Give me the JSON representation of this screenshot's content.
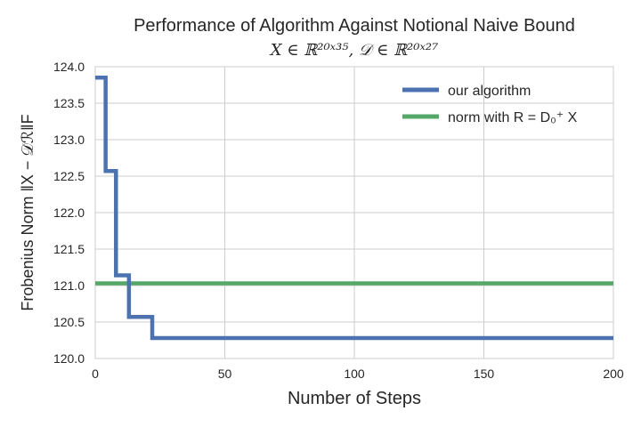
{
  "chart_data": {
    "type": "line",
    "title": "Performance of Algorithm Against Notional Naive Bound",
    "subtitle": "X ∈ ℝ²⁰ˣ³⁵,  𝒟 ∈ ℝ²⁰ˣ²⁷",
    "xlabel": "Number of Steps",
    "ylabel": "Frobenius Norm ‖X − 𝒟ℛ‖F",
    "xlim": [
      0,
      200
    ],
    "ylim": [
      120.0,
      124.0
    ],
    "x_ticks": [
      "0",
      "50",
      "100",
      "150",
      "200"
    ],
    "y_ticks": [
      "120.0",
      "120.5",
      "121.0",
      "121.5",
      "122.0",
      "122.5",
      "123.0",
      "123.5",
      "124.0"
    ],
    "grid": true,
    "legend_position": "top-right",
    "series": [
      {
        "name": "our algorithm",
        "color": "#4c72b0",
        "step": true,
        "x": [
          0,
          4,
          8,
          13,
          22,
          200
        ],
        "y": [
          123.85,
          122.57,
          121.14,
          120.57,
          120.28,
          120.28
        ]
      },
      {
        "name": "norm with R = D₀⁺ X",
        "color": "#55a868",
        "step": false,
        "x": [
          0,
          200
        ],
        "y": [
          121.03,
          121.03
        ]
      }
    ]
  }
}
